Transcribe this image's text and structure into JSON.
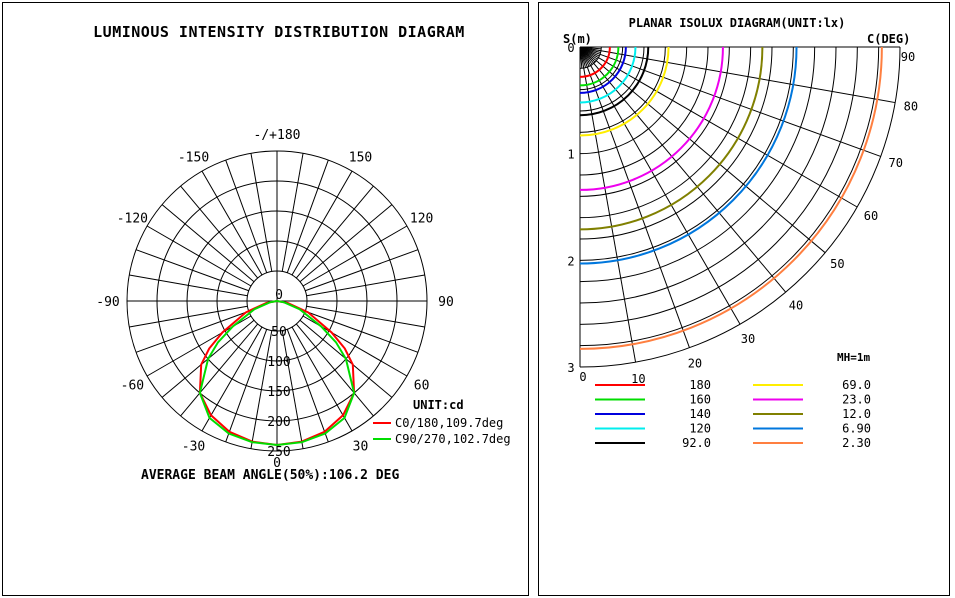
{
  "luminous": {
    "title": "LUMINOUS INTENSITY DISTRIBUTION DIAGRAM",
    "angle_labels": [
      "-/+180",
      "-150",
      "150",
      "-120",
      "120",
      "-90",
      "90",
      "-60",
      "60",
      "-30",
      "30",
      "0"
    ],
    "radial_labels": [
      "0",
      "50",
      "100",
      "150",
      "200",
      "250"
    ],
    "unit": "UNIT:cd",
    "legend": [
      {
        "label": "C0/180,109.7deg",
        "color": "#ff0000"
      },
      {
        "label": "C90/270,102.7deg",
        "color": "#00dd00"
      }
    ],
    "footer": "AVERAGE BEAM ANGLE(50%):106.2 DEG"
  },
  "isolux": {
    "title": "PLANAR ISOLUX DIAGRAM(UNIT:lx)",
    "s_label": "S(m)",
    "c_label": "C(DEG)",
    "y_labels": [
      "0",
      "1",
      "2",
      "3"
    ],
    "angle_labels": [
      "0",
      "10",
      "20",
      "30",
      "40",
      "50",
      "60",
      "70",
      "80",
      "90"
    ],
    "mh": "MH=1m",
    "legend": [
      {
        "value": "180",
        "color": "#ff0000"
      },
      {
        "value": "160",
        "color": "#00dd00"
      },
      {
        "value": "140",
        "color": "#0000dd"
      },
      {
        "value": "120",
        "color": "#00eeee"
      },
      {
        "value": "92.0",
        "color": "#000000"
      },
      {
        "value": "69.0",
        "color": "#ffee00"
      },
      {
        "value": "23.0",
        "color": "#ee00ee"
      },
      {
        "value": "12.0",
        "color": "#808000"
      },
      {
        "value": "6.90",
        "color": "#0077dd"
      },
      {
        "value": "2.30",
        "color": "#ff7f40"
      }
    ]
  },
  "chart_data": [
    {
      "type": "polar",
      "title": "LUMINOUS INTENSITY DISTRIBUTION DIAGRAM",
      "unit": "cd",
      "rlim": [
        0,
        250
      ],
      "angle_ticks_deg": [
        -180,
        -150,
        -120,
        -90,
        -60,
        -30,
        0,
        30,
        60,
        90,
        120,
        150,
        180
      ],
      "series": [
        {
          "name": "C0/180,109.7deg",
          "color": "#ff0000",
          "angles_deg": [
            0,
            10,
            20,
            30,
            40,
            50,
            55,
            60,
            70,
            80,
            90
          ],
          "values": [
            240,
            238,
            232,
            220,
            200,
            165,
            138,
            105,
            55,
            18,
            0
          ]
        },
        {
          "name": "C90/270,102.7deg",
          "color": "#00dd00",
          "angles_deg": [
            0,
            10,
            20,
            30,
            40,
            50,
            55,
            60,
            70,
            80,
            90
          ],
          "values": [
            240,
            239,
            235,
            225,
            200,
            150,
            120,
            85,
            40,
            12,
            0
          ]
        }
      ],
      "annotation": "AVERAGE BEAM ANGLE(50%):106.2 DEG"
    },
    {
      "type": "isolux",
      "title": "PLANAR ISOLUX DIAGRAM(UNIT:lx)",
      "unit": "lx",
      "ylabel": "S(m)",
      "ylim": [
        0,
        3
      ],
      "c_angles_deg": [
        0,
        10,
        20,
        30,
        40,
        50,
        60,
        70,
        80,
        90
      ],
      "mounting_height_m": 1,
      "series": [
        {
          "name": "180",
          "color": "#ff0000",
          "radius_m": 0.28
        },
        {
          "name": "160",
          "color": "#00dd00",
          "radius_m": 0.36
        },
        {
          "name": "140",
          "color": "#0000dd",
          "radius_m": 0.43
        },
        {
          "name": "120",
          "color": "#00eeee",
          "radius_m": 0.52
        },
        {
          "name": "92.0",
          "color": "#000000",
          "radius_m": 0.64
        },
        {
          "name": "69.0",
          "color": "#ffee00",
          "radius_m": 0.83
        },
        {
          "name": "23.0",
          "color": "#ee00ee",
          "radius_m": 1.34
        },
        {
          "name": "12.0",
          "color": "#808000",
          "radius_m": 1.71
        },
        {
          "name": "6.90",
          "color": "#0077dd",
          "radius_m": 2.03
        },
        {
          "name": "2.30",
          "color": "#ff7f40",
          "radius_m": 2.83
        }
      ]
    }
  ]
}
